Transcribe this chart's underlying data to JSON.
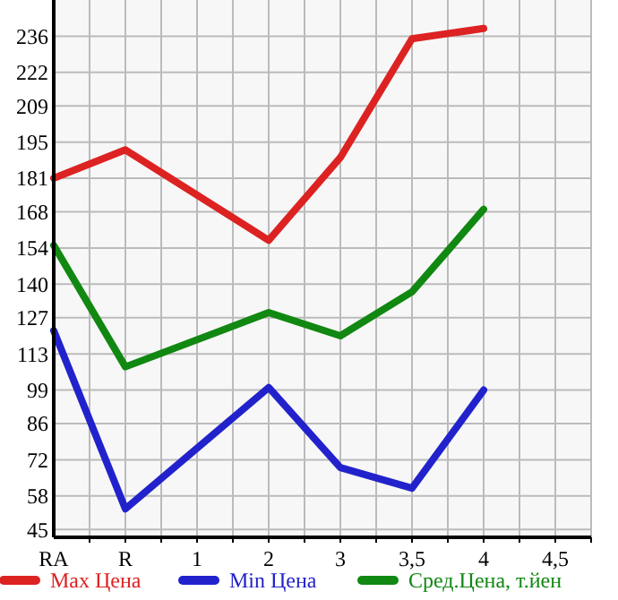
{
  "chart_data": {
    "type": "line",
    "categories": [
      "RA",
      "R",
      "1",
      "2",
      "3",
      "3,5",
      "4",
      "4,5"
    ],
    "series": [
      {
        "name": "Max Цена",
        "color": "#dd2222",
        "values": [
          181,
          192,
          null,
          157,
          189,
          235,
          239,
          null
        ]
      },
      {
        "name": "Min Цена",
        "color": "#2222cc",
        "values": [
          122,
          53,
          null,
          100,
          69,
          61,
          99,
          null
        ]
      },
      {
        "name": "Сред.Цена, т.йен",
        "color": "#118811",
        "values": [
          155,
          108,
          null,
          129,
          120,
          137,
          169,
          null
        ]
      }
    ],
    "ylim": [
      42,
      250
    ],
    "yticks": [
      45,
      58,
      72,
      86,
      99,
      113,
      127,
      140,
      154,
      168,
      181,
      195,
      209,
      222,
      236
    ],
    "grid": true,
    "legend": "bottom",
    "marker": "none",
    "line_style": "solid"
  }
}
